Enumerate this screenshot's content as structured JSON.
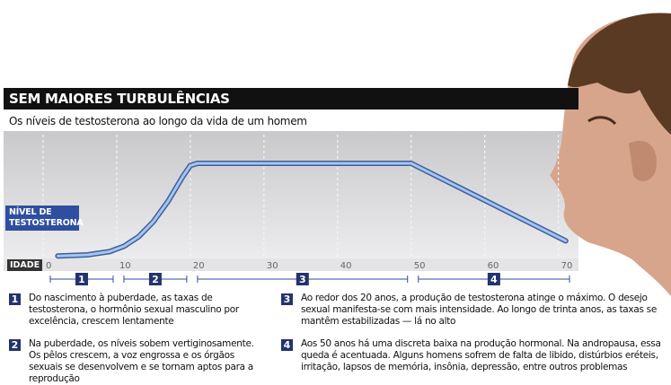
{
  "chart_data": {
    "type": "line",
    "title": "SEM MAIORES TURBULÊNCIAS",
    "subtitle": "Os níveis de testosterona ao longo da vida de um homem",
    "ylabel": "NÍVEL DE\nTESTOSTERONA",
    "xlabel": "IDADE",
    "x": [
      2,
      6,
      9,
      11,
      13,
      15,
      17,
      19,
      20,
      21,
      50,
      71
    ],
    "series": [
      {
        "color": "#3b5fa0",
        "values": [
          4,
          5,
          8,
          13,
          22,
          36,
          55,
          78,
          88,
          90,
          90,
          18
        ]
      }
    ],
    "xlim": [
      0,
      72
    ],
    "xticks": [
      0,
      10,
      20,
      30,
      40,
      50,
      60,
      70
    ],
    "ylim": [
      0,
      100
    ],
    "grid": true,
    "phases": [
      {
        "label": "1",
        "start": 0,
        "end": 10
      },
      {
        "label": "2",
        "start": 10,
        "end": 20
      },
      {
        "label": "3",
        "start": 20,
        "end": 50
      },
      {
        "label": "4",
        "start": 50,
        "end": 72
      }
    ],
    "notes": [
      {
        "number": "1",
        "text": "Do nascimento à puberdade, as taxas de testosterona, o hormônio sexual masculino por excelência, crescem lentamente"
      },
      {
        "number": "2",
        "text": "Na puberdade, os níveis sobem vertiginosamente. Os pêlos crescem, a voz engrossa e os órgãos sexuais se desenvolvem e se tornam aptos para a reprodução"
      },
      {
        "number": "3",
        "text": "Ao redor dos 20 anos, a produção de testosterona atinge o máximo. O desejo sexual manifesta-se com mais intensidade. Ao longo de trinta anos, as taxas se mantêm estabilizadas — lá no alto"
      },
      {
        "number": "4",
        "text": "Aos 50 anos há uma discreta baixa na produção hormonal. Na andropausa, essa queda é acentuada. Alguns homens sofrem de falta de libido, distúrbios eréteis, irritação, lapsos de memória, insônia, depressão, entre outros problemas"
      }
    ]
  }
}
